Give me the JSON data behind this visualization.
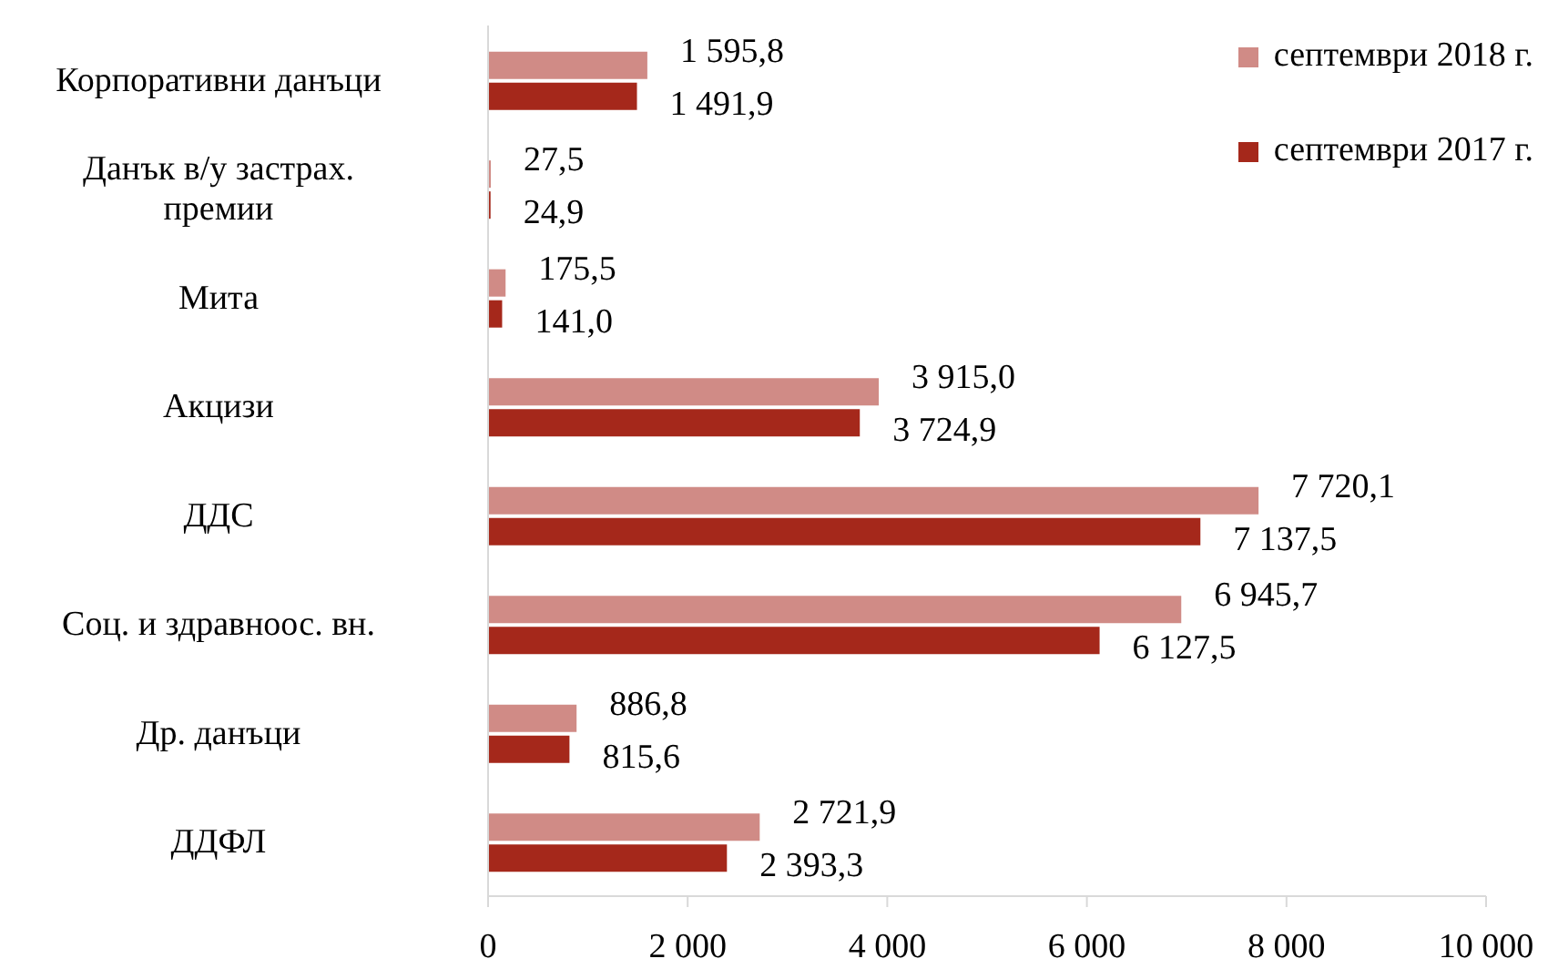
{
  "chart_data": {
    "type": "bar",
    "orientation": "horizontal",
    "categories": [
      "Корпоративни данъци",
      "Данък в/у застрах. премии",
      "Мита",
      "Акцизи",
      "ДДС",
      "Соц. и здравноос. вн.",
      "Др. данъци",
      "ДДФЛ"
    ],
    "series": [
      {
        "name": "септември 2018 г.",
        "color": "#d08b86",
        "values": [
          1595.8,
          27.5,
          175.5,
          3915.0,
          7720.1,
          6945.7,
          886.8,
          2721.9
        ],
        "value_labels": [
          "1 595,8",
          "27,5",
          "175,5",
          "3 915,0",
          "7 720,1",
          "6 945,7",
          "886,8",
          "2 721,9"
        ]
      },
      {
        "name": "септември 2017 г.",
        "color": "#a5281b",
        "values": [
          1491.9,
          24.9,
          141.0,
          3724.9,
          7137.5,
          6127.5,
          815.6,
          2393.3
        ],
        "value_labels": [
          "1 491,9",
          "24,9",
          "141,0",
          "3 724,9",
          "7 137,5",
          "6 127,5",
          "815,6",
          "2 393,3"
        ]
      }
    ],
    "xlim": [
      0,
      10000
    ],
    "xticks": [
      0,
      {
        "value": 2000,
        "label": "2 000"
      },
      {
        "value": 4000,
        "label": "4 000"
      },
      {
        "value": 6000,
        "label": "6 000"
      },
      {
        "value": 8000,
        "label": "8 000"
      },
      {
        "value": 10000,
        "label": "10 000"
      }
    ],
    "grid": false,
    "legend": "top right"
  }
}
